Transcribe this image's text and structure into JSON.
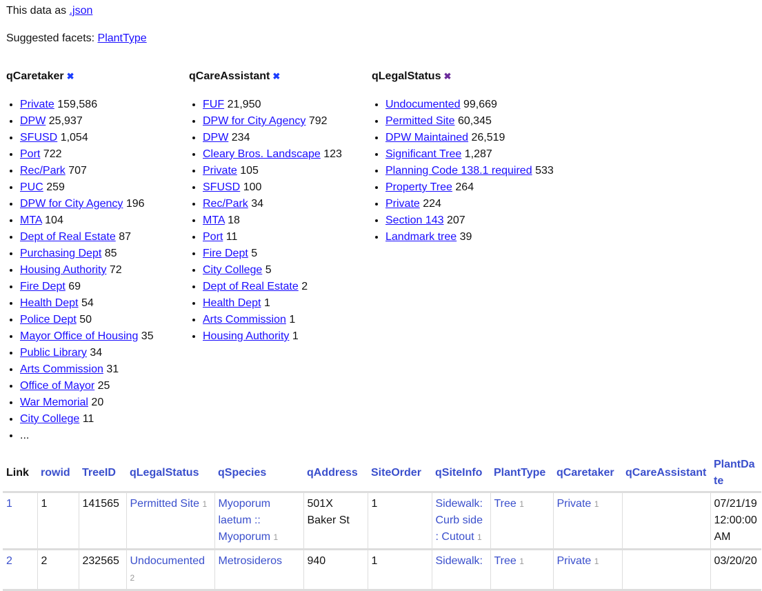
{
  "header": {
    "json_prefix": "This data as ",
    "json_link": ".json",
    "facets_prefix": "Suggested facets: ",
    "suggested": "PlantType"
  },
  "facets": [
    {
      "title": "qCaretaker",
      "remove": "✖",
      "items": [
        [
          "Private",
          "159,586"
        ],
        [
          "DPW",
          "25,937"
        ],
        [
          "SFUSD",
          "1,054"
        ],
        [
          "Port",
          "722"
        ],
        [
          "Rec/Park",
          "707"
        ],
        [
          "PUC",
          "259"
        ],
        [
          "DPW for City Agency",
          "196"
        ],
        [
          "MTA",
          "104"
        ],
        [
          "Dept of Real Estate",
          "87"
        ],
        [
          "Purchasing Dept",
          "85"
        ],
        [
          "Housing Authority",
          "72"
        ],
        [
          "Fire Dept",
          "69"
        ],
        [
          "Health Dept",
          "54"
        ],
        [
          "Police Dept",
          "50"
        ],
        [
          "Mayor Office of Housing",
          "35"
        ],
        [
          "Public Library",
          "34"
        ],
        [
          "Arts Commission",
          "31"
        ],
        [
          "Office of Mayor",
          "25"
        ],
        [
          "War Memorial",
          "20"
        ],
        [
          "City College",
          "11"
        ]
      ],
      "more": "..."
    },
    {
      "title": "qCareAssistant",
      "remove": "✖",
      "items": [
        [
          "FUF",
          "21,950"
        ],
        [
          "DPW for City Agency",
          "792"
        ],
        [
          "DPW",
          "234"
        ],
        [
          "Cleary Bros. Landscape",
          "123"
        ],
        [
          "Private",
          "105"
        ],
        [
          "SFUSD",
          "100"
        ],
        [
          "Rec/Park",
          "34"
        ],
        [
          "MTA",
          "18"
        ],
        [
          "Port",
          "11"
        ],
        [
          "Fire Dept",
          "5"
        ],
        [
          "City College",
          "5"
        ],
        [
          "Dept of Real Estate",
          "2"
        ],
        [
          "Health Dept",
          "1"
        ],
        [
          "Arts Commission",
          "1"
        ],
        [
          "Housing Authority",
          "1"
        ]
      ]
    },
    {
      "title": "qLegalStatus",
      "remove": "✖",
      "items": [
        [
          "Undocumented",
          "99,669"
        ],
        [
          "Permitted Site",
          "60,345"
        ],
        [
          "DPW Maintained",
          "26,519"
        ],
        [
          "Significant Tree",
          "1,287"
        ],
        [
          "Planning Code 138.1 required",
          "533"
        ],
        [
          "Property Tree",
          "264"
        ],
        [
          "Private",
          "224"
        ],
        [
          "Section 143",
          "207"
        ],
        [
          "Landmark tree",
          "39"
        ]
      ]
    }
  ],
  "table": {
    "columns": [
      "Link",
      "rowid",
      "TreeID",
      "qLegalStatus",
      "qSpecies",
      "qAddress",
      "SiteOrder",
      "qSiteInfo",
      "PlantType",
      "qCaretaker",
      "qCareAssistant",
      "PlantDate"
    ],
    "rows": [
      {
        "link": "1",
        "rowid": "1",
        "treeid": "141565",
        "legal": "Permitted Site",
        "legal_c": "1",
        "species": "Myoporum laetum :: Myoporum",
        "species_c": "1",
        "address": "501X Baker St",
        "siteorder": "1",
        "siteinfo": "Sidewalk: Curb side : Cutout",
        "siteinfo_c": "1",
        "planttype": "Tree",
        "planttype_c": "1",
        "caretaker": "Private",
        "caretaker_c": "1",
        "assistant": "",
        "date": "07/21/19 12:00:00 AM"
      },
      {
        "link": "2",
        "rowid": "2",
        "treeid": "232565",
        "legal": "Undocumented",
        "legal_c": "2",
        "species": "Metrosideros",
        "species_c": "",
        "address": "940",
        "siteorder": "1",
        "siteinfo": "Sidewalk:",
        "siteinfo_c": "",
        "planttype": "Tree",
        "planttype_c": "1",
        "caretaker": "Private",
        "caretaker_c": "1",
        "assistant": "",
        "date": "03/20/20"
      }
    ]
  }
}
